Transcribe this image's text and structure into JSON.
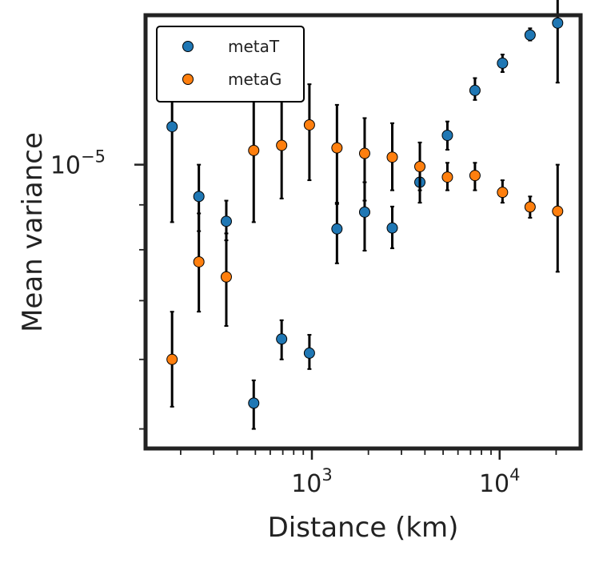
{
  "chart_data": {
    "type": "scatter",
    "xlabel": "Distance (km)",
    "ylabel": "Mean variance",
    "x_scale": "log",
    "y_scale": "log",
    "xlim": [
      130,
      27000
    ],
    "ylim": [
      4.75e-06,
      1.48e-05
    ],
    "x_tick_labels": [
      {
        "value": 1000,
        "base": "10",
        "exp": "3"
      },
      {
        "value": 10000,
        "base": "10",
        "exp": "4"
      }
    ],
    "y_tick_labels": [
      {
        "value": 1e-05,
        "base": "10",
        "exp": "−5"
      }
    ],
    "legend": {
      "position": "top-left"
    },
    "series": [
      {
        "name": "metaT",
        "color": "#1f77b4",
        "points": [
          {
            "x": 180,
            "y": 1.105e-05,
            "lo": 8.6e-06,
            "hi": 1.41e-05
          },
          {
            "x": 250,
            "y": 9.2e-06,
            "lo": 8.4e-06,
            "hi": 1e-05
          },
          {
            "x": 350,
            "y": 8.62e-06,
            "lo": 8.2e-06,
            "hi": 9.1e-06
          },
          {
            "x": 490,
            "y": 5.35e-06,
            "lo": 5e-06,
            "hi": 5.68e-06
          },
          {
            "x": 690,
            "y": 6.33e-06,
            "lo": 6e-06,
            "hi": 6.65e-06
          },
          {
            "x": 970,
            "y": 6.1e-06,
            "lo": 5.85e-06,
            "hi": 6.4e-06
          },
          {
            "x": 1360,
            "y": 8.45e-06,
            "lo": 7.72e-06,
            "hi": 9.02e-06
          },
          {
            "x": 1910,
            "y": 8.83e-06,
            "lo": 7.98e-06,
            "hi": 9.55e-06
          },
          {
            "x": 2680,
            "y": 8.47e-06,
            "lo": 8.03e-06,
            "hi": 8.96e-06
          },
          {
            "x": 3760,
            "y": 9.55e-06,
            "lo": 9.05e-06,
            "hi": 1.005e-05
          },
          {
            "x": 5270,
            "y": 1.08e-05,
            "lo": 1.04e-05,
            "hi": 1.12e-05
          },
          {
            "x": 7390,
            "y": 1.215e-05,
            "lo": 1.185e-05,
            "hi": 1.255e-05
          },
          {
            "x": 10360,
            "y": 1.305e-05,
            "lo": 1.275e-05,
            "hi": 1.335e-05
          },
          {
            "x": 14530,
            "y": 1.405e-05,
            "lo": 1.385e-05,
            "hi": 1.43e-05
          },
          {
            "x": 20370,
            "y": 1.45e-05,
            "lo": 1.24e-05,
            "hi": 1.72e-05
          }
        ]
      },
      {
        "name": "metaG",
        "color": "#ff7f0e",
        "points": [
          {
            "x": 180,
            "y": 6e-06,
            "lo": 5.3e-06,
            "hi": 6.8e-06
          },
          {
            "x": 250,
            "y": 7.75e-06,
            "lo": 6.8e-06,
            "hi": 8.8e-06
          },
          {
            "x": 350,
            "y": 7.45e-06,
            "lo": 6.55e-06,
            "hi": 8.35e-06
          },
          {
            "x": 490,
            "y": 1.038e-05,
            "lo": 8.6e-06,
            "hi": 1.195e-05
          },
          {
            "x": 690,
            "y": 1.052e-05,
            "lo": 9.15e-06,
            "hi": 1.18e-05
          },
          {
            "x": 970,
            "y": 1.11e-05,
            "lo": 9.6e-06,
            "hi": 1.235e-05
          },
          {
            "x": 1360,
            "y": 1.045e-05,
            "lo": 9.05e-06,
            "hi": 1.17e-05
          },
          {
            "x": 1910,
            "y": 1.03e-05,
            "lo": 9.1e-06,
            "hi": 1.13e-05
          },
          {
            "x": 2680,
            "y": 1.02e-05,
            "lo": 9.35e-06,
            "hi": 1.115e-05
          },
          {
            "x": 3760,
            "y": 9.95e-06,
            "lo": 9.35e-06,
            "hi": 1.06e-05
          },
          {
            "x": 5270,
            "y": 9.68e-06,
            "lo": 9.35e-06,
            "hi": 1.005e-05
          },
          {
            "x": 7390,
            "y": 9.72e-06,
            "lo": 9.35e-06,
            "hi": 1.005e-05
          },
          {
            "x": 10360,
            "y": 9.3e-06,
            "lo": 9.05e-06,
            "hi": 9.6e-06
          },
          {
            "x": 14530,
            "y": 8.95e-06,
            "lo": 8.7e-06,
            "hi": 9.2e-06
          },
          {
            "x": 20370,
            "y": 8.85e-06,
            "lo": 7.55e-06,
            "hi": 1e-05
          }
        ]
      }
    ]
  }
}
